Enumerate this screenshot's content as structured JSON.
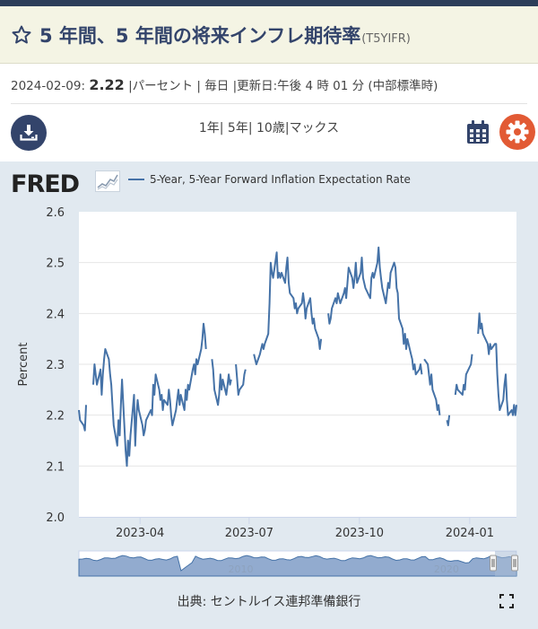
{
  "header": {
    "title": "5 年間、5 年間の将来インフレ期待率",
    "series_code": "(T5YIFR)",
    "star_icon": "star-outline-icon"
  },
  "meta": {
    "date": "2024-02-09:",
    "value": "2.22",
    "details": "|パーセント | 毎日 |更新日:午後 4 時 01 分 (中部標準時)"
  },
  "toolbar": {
    "ranges": [
      "1年",
      "5年",
      "10歳",
      "マックス"
    ],
    "download_icon": "download-icon",
    "calendar_icon": "calendar-icon",
    "settings_icon": "gear-icon"
  },
  "footer": {
    "source": "出典: セントルイス連邦準備銀行",
    "fullscreen_icon": "fullscreen-icon"
  },
  "colors": {
    "series": "#4572a7",
    "accent": "#e25a34",
    "brand": "#33446b"
  },
  "chart_data": {
    "type": "line",
    "logo": "FRED",
    "legend": [
      "5-Year, 5-Year Forward Inflation Expectation Rate"
    ],
    "ylabel": "Percent",
    "xlabel": "",
    "ylim": [
      2.0,
      2.6
    ],
    "yticks": [
      "2.0",
      "2.1",
      "2.2",
      "2.3",
      "2.4",
      "2.5",
      "2.6"
    ],
    "xticks": [
      {
        "label": "2023-04",
        "x": "2023-04-01"
      },
      {
        "label": "2023-07",
        "x": "2023-07-01"
      },
      {
        "label": "2023-10",
        "x": "2023-10-01"
      },
      {
        "label": "2024-01",
        "x": "2024-01-01"
      }
    ],
    "xlim": [
      "2023-02-09",
      "2024-02-09"
    ],
    "grid": true,
    "navigator_labels": [
      "2010",
      "2020"
    ],
    "series": [
      {
        "name": "5-Year, 5-Year Forward Inflation Expectation Rate",
        "points": [
          [
            "2023-02-09",
            2.21
          ],
          [
            "2023-02-10",
            2.19
          ],
          [
            "2023-02-13",
            2.18
          ],
          [
            "2023-02-14",
            2.17
          ],
          [
            "2023-02-15",
            2.22
          ],
          [
            "2023-02-17",
            null
          ],
          [
            "2023-02-21",
            2.26
          ],
          [
            "2023-02-22",
            2.3
          ],
          [
            "2023-02-23",
            2.28
          ],
          [
            "2023-02-24",
            2.26
          ],
          [
            "2023-02-27",
            2.29
          ],
          [
            "2023-02-28",
            2.24
          ],
          [
            "2023-03-01",
            2.28
          ],
          [
            "2023-03-02",
            2.31
          ],
          [
            "2023-03-03",
            2.33
          ],
          [
            "2023-03-06",
            2.31
          ],
          [
            "2023-03-07",
            2.28
          ],
          [
            "2023-03-08",
            2.26
          ],
          [
            "2023-03-09",
            2.22
          ],
          [
            "2023-03-10",
            2.18
          ],
          [
            "2023-03-13",
            2.14
          ],
          [
            "2023-03-14",
            2.19
          ],
          [
            "2023-03-15",
            2.16
          ],
          [
            "2023-03-16",
            2.22
          ],
          [
            "2023-03-17",
            2.27
          ],
          [
            "2023-03-20",
            2.13
          ],
          [
            "2023-03-21",
            2.1
          ],
          [
            "2023-03-22",
            2.15
          ],
          [
            "2023-03-23",
            2.12
          ],
          [
            "2023-03-24",
            2.16
          ],
          [
            "2023-03-27",
            2.24
          ],
          [
            "2023-03-28",
            2.14
          ],
          [
            "2023-03-29",
            2.2
          ],
          [
            "2023-03-30",
            2.23
          ],
          [
            "2023-03-31",
            2.21
          ],
          [
            "2023-04-03",
            2.18
          ],
          [
            "2023-04-04",
            2.16
          ],
          [
            "2023-04-05",
            2.17
          ],
          [
            "2023-04-06",
            2.19
          ],
          [
            "2023-04-10",
            2.21
          ],
          [
            "2023-04-11",
            2.2
          ],
          [
            "2023-04-12",
            2.26
          ],
          [
            "2023-04-13",
            2.24
          ],
          [
            "2023-04-14",
            2.28
          ],
          [
            "2023-04-17",
            2.25
          ],
          [
            "2023-04-18",
            2.23
          ],
          [
            "2023-04-19",
            2.24
          ],
          [
            "2023-04-20",
            2.21
          ],
          [
            "2023-04-21",
            2.23
          ],
          [
            "2023-04-24",
            2.22
          ],
          [
            "2023-04-25",
            2.25
          ],
          [
            "2023-04-26",
            2.23
          ],
          [
            "2023-04-27",
            2.2
          ],
          [
            "2023-04-28",
            2.18
          ],
          [
            "2023-05-01",
            2.21
          ],
          [
            "2023-05-02",
            2.23
          ],
          [
            "2023-05-03",
            2.25
          ],
          [
            "2023-05-04",
            2.22
          ],
          [
            "2023-05-05",
            2.24
          ],
          [
            "2023-05-08",
            2.21
          ],
          [
            "2023-05-09",
            2.25
          ],
          [
            "2023-05-10",
            2.23
          ],
          [
            "2023-05-11",
            2.26
          ],
          [
            "2023-05-12",
            2.25
          ],
          [
            "2023-05-15",
            2.29
          ],
          [
            "2023-05-16",
            2.3
          ],
          [
            "2023-05-17",
            2.28
          ],
          [
            "2023-05-18",
            2.31
          ],
          [
            "2023-05-19",
            2.3
          ],
          [
            "2023-05-22",
            2.33
          ],
          [
            "2023-05-23",
            2.35
          ],
          [
            "2023-05-24",
            2.38
          ],
          [
            "2023-05-25",
            2.36
          ],
          [
            "2023-05-26",
            2.33
          ],
          [
            "2023-05-29",
            null
          ],
          [
            "2023-05-31",
            2.31
          ],
          [
            "2023-06-01",
            2.29
          ],
          [
            "2023-06-02",
            2.25
          ],
          [
            "2023-06-05",
            2.22
          ],
          [
            "2023-06-06",
            2.24
          ],
          [
            "2023-06-07",
            2.28
          ],
          [
            "2023-06-08",
            2.25
          ],
          [
            "2023-06-09",
            2.27
          ],
          [
            "2023-06-12",
            2.24
          ],
          [
            "2023-06-13",
            2.26
          ],
          [
            "2023-06-14",
            2.28
          ],
          [
            "2023-06-15",
            2.26
          ],
          [
            "2023-06-16",
            2.27
          ],
          [
            "2023-06-19",
            null
          ],
          [
            "2023-06-20",
            2.3
          ],
          [
            "2023-06-21",
            2.27
          ],
          [
            "2023-06-22",
            2.24
          ],
          [
            "2023-06-23",
            2.25
          ],
          [
            "2023-06-26",
            2.26
          ],
          [
            "2023-06-27",
            2.28
          ],
          [
            "2023-06-28",
            2.29
          ],
          [
            "2023-06-29",
            null
          ],
          [
            "2023-07-05",
            2.32
          ],
          [
            "2023-07-06",
            2.31
          ],
          [
            "2023-07-07",
            2.3
          ],
          [
            "2023-07-10",
            2.32
          ],
          [
            "2023-07-11",
            2.33
          ],
          [
            "2023-07-12",
            2.34
          ],
          [
            "2023-07-13",
            2.33
          ],
          [
            "2023-07-14",
            2.34
          ],
          [
            "2023-07-17",
            2.36
          ],
          [
            "2023-07-18",
            2.42
          ],
          [
            "2023-07-19",
            2.5
          ],
          [
            "2023-07-20",
            2.48
          ],
          [
            "2023-07-21",
            2.47
          ],
          [
            "2023-07-24",
            2.52
          ],
          [
            "2023-07-25",
            2.47
          ],
          [
            "2023-07-26",
            2.48
          ],
          [
            "2023-07-27",
            2.47
          ],
          [
            "2023-07-28",
            2.48
          ],
          [
            "2023-07-31",
            2.46
          ],
          [
            "2023-08-01",
            2.49
          ],
          [
            "2023-08-02",
            2.51
          ],
          [
            "2023-08-03",
            2.46
          ],
          [
            "2023-08-04",
            2.44
          ],
          [
            "2023-08-07",
            2.43
          ],
          [
            "2023-08-08",
            2.41
          ],
          [
            "2023-08-09",
            2.42
          ],
          [
            "2023-08-10",
            2.4
          ],
          [
            "2023-08-11",
            2.41
          ],
          [
            "2023-08-14",
            2.42
          ],
          [
            "2023-08-15",
            2.44
          ],
          [
            "2023-08-16",
            2.42
          ],
          [
            "2023-08-17",
            2.39
          ],
          [
            "2023-08-18",
            2.41
          ],
          [
            "2023-08-21",
            2.43
          ],
          [
            "2023-08-22",
            2.4
          ],
          [
            "2023-08-23",
            2.38
          ],
          [
            "2023-08-24",
            2.39
          ],
          [
            "2023-08-25",
            2.37
          ],
          [
            "2023-08-28",
            2.35
          ],
          [
            "2023-08-29",
            2.33
          ],
          [
            "2023-08-30",
            2.35
          ],
          [
            "2023-08-31",
            null
          ],
          [
            "2023-09-05",
            2.4
          ],
          [
            "2023-09-06",
            2.38
          ],
          [
            "2023-09-07",
            2.39
          ],
          [
            "2023-09-08",
            2.41
          ],
          [
            "2023-09-11",
            2.43
          ],
          [
            "2023-09-12",
            2.42
          ],
          [
            "2023-09-13",
            2.44
          ],
          [
            "2023-09-14",
            2.43
          ],
          [
            "2023-09-15",
            2.42
          ],
          [
            "2023-09-18",
            2.44
          ],
          [
            "2023-09-19",
            2.45
          ],
          [
            "2023-09-20",
            2.43
          ],
          [
            "2023-09-21",
            2.46
          ],
          [
            "2023-09-22",
            2.49
          ],
          [
            "2023-09-25",
            2.47
          ],
          [
            "2023-09-26",
            2.45
          ],
          [
            "2023-09-27",
            2.47
          ],
          [
            "2023-09-28",
            2.5
          ],
          [
            "2023-09-29",
            2.46
          ],
          [
            "2023-10-02",
            2.48
          ],
          [
            "2023-10-03",
            2.51
          ],
          [
            "2023-10-04",
            2.47
          ],
          [
            "2023-10-05",
            2.46
          ],
          [
            "2023-10-06",
            2.45
          ],
          [
            "2023-10-10",
            2.43
          ],
          [
            "2023-10-11",
            2.47
          ],
          [
            "2023-10-12",
            2.48
          ],
          [
            "2023-10-13",
            2.47
          ],
          [
            "2023-10-16",
            2.5
          ],
          [
            "2023-10-17",
            2.53
          ],
          [
            "2023-10-18",
            2.49
          ],
          [
            "2023-10-19",
            2.47
          ],
          [
            "2023-10-20",
            2.45
          ],
          [
            "2023-10-23",
            2.42
          ],
          [
            "2023-10-24",
            2.44
          ],
          [
            "2023-10-25",
            2.46
          ],
          [
            "2023-10-26",
            2.45
          ],
          [
            "2023-10-27",
            2.48
          ],
          [
            "2023-10-30",
            2.5
          ],
          [
            "2023-10-31",
            2.49
          ],
          [
            "2023-11-01",
            2.45
          ],
          [
            "2023-11-02",
            2.44
          ],
          [
            "2023-11-03",
            2.39
          ],
          [
            "2023-11-06",
            2.37
          ],
          [
            "2023-11-07",
            2.34
          ],
          [
            "2023-11-08",
            2.36
          ],
          [
            "2023-11-09",
            2.33
          ],
          [
            "2023-11-10",
            2.35
          ],
          [
            "2023-11-13",
            2.32
          ],
          [
            "2023-11-14",
            2.31
          ],
          [
            "2023-11-15",
            2.29
          ],
          [
            "2023-11-16",
            2.3
          ],
          [
            "2023-11-17",
            2.28
          ],
          [
            "2023-11-20",
            2.29
          ],
          [
            "2023-11-21",
            2.3
          ],
          [
            "2023-11-22",
            2.28
          ],
          [
            "2023-11-23",
            null
          ],
          [
            "2023-11-24",
            2.31
          ],
          [
            "2023-11-27",
            2.3
          ],
          [
            "2023-11-28",
            2.28
          ],
          [
            "2023-11-29",
            2.26
          ],
          [
            "2023-11-30",
            2.28
          ],
          [
            "2023-12-01",
            2.25
          ],
          [
            "2023-12-04",
            2.23
          ],
          [
            "2023-12-05",
            2.21
          ],
          [
            "2023-12-06",
            2.22
          ],
          [
            "2023-12-07",
            2.2
          ],
          [
            "2023-12-08",
            null
          ],
          [
            "2023-12-13",
            2.19
          ],
          [
            "2023-12-14",
            2.18
          ],
          [
            "2023-12-15",
            2.2
          ],
          [
            "2023-12-18",
            null
          ],
          [
            "2023-12-20",
            2.24
          ],
          [
            "2023-12-21",
            2.26
          ],
          [
            "2023-12-22",
            2.25
          ],
          [
            "2023-12-26",
            2.24
          ],
          [
            "2023-12-27",
            2.26
          ],
          [
            "2023-12-28",
            2.25
          ],
          [
            "2023-12-29",
            2.28
          ],
          [
            "2024-01-02",
            2.3
          ],
          [
            "2024-01-03",
            2.32
          ],
          [
            "2024-01-04",
            null
          ],
          [
            "2024-01-08",
            2.36
          ],
          [
            "2024-01-09",
            2.4
          ],
          [
            "2024-01-10",
            2.37
          ],
          [
            "2024-01-11",
            2.38
          ],
          [
            "2024-01-12",
            2.36
          ],
          [
            "2024-01-16",
            2.34
          ],
          [
            "2024-01-17",
            2.32
          ],
          [
            "2024-01-18",
            2.34
          ],
          [
            "2024-01-19",
            2.33
          ],
          [
            "2024-01-22",
            2.34
          ],
          [
            "2024-01-23",
            2.34
          ],
          [
            "2024-01-24",
            2.28
          ],
          [
            "2024-01-25",
            2.24
          ],
          [
            "2024-01-26",
            2.21
          ],
          [
            "2024-01-29",
            2.23
          ],
          [
            "2024-01-30",
            2.26
          ],
          [
            "2024-01-31",
            2.28
          ],
          [
            "2024-02-01",
            2.23
          ],
          [
            "2024-02-02",
            2.2
          ],
          [
            "2024-02-05",
            2.21
          ],
          [
            "2024-02-06",
            2.2
          ],
          [
            "2024-02-07",
            2.22
          ],
          [
            "2024-02-08",
            2.2
          ],
          [
            "2024-02-09",
            2.22
          ]
        ]
      }
    ]
  }
}
